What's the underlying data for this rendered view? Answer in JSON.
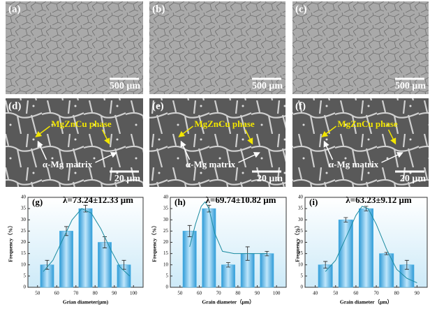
{
  "micrographs": [
    {
      "label": "(a)",
      "scale": "500 μm"
    },
    {
      "label": "(b)",
      "scale": "500 μm"
    },
    {
      "label": "(c)",
      "scale": "500 μm"
    },
    {
      "label": "(d)",
      "phase": "MgZnCu phase",
      "matrix": "α-Mg matrix",
      "scale": "20 μm"
    },
    {
      "label": "(e)",
      "phase": "MgZnCu phase",
      "matrix": "α-Mg matrix",
      "scale": "20 μm"
    },
    {
      "label": "(f)",
      "phase": "MgZnCu phase",
      "matrix": "α-Mg matrix",
      "scale": "20 μm"
    }
  ],
  "chart_data": [
    {
      "type": "bar",
      "label": "(g)",
      "title": "λ=73.24±12.33 μm",
      "x_label": "Grian diameter(μm)",
      "y_label": "Frequency（%）",
      "x": [
        55,
        65,
        75,
        85,
        95
      ],
      "values": [
        10,
        25,
        35,
        20,
        10
      ],
      "errors": [
        2,
        2,
        1.5,
        2.5,
        2
      ],
      "color": "#4fb6e8",
      "fit": {
        "x": [
          53,
          58,
          63,
          68,
          73,
          78,
          83,
          88,
          93,
          98
        ],
        "y": [
          7,
          12,
          21,
          30,
          35,
          33,
          26,
          17,
          9,
          5
        ]
      },
      "xlim": [
        45,
        105
      ],
      "xticks": [
        50,
        60,
        70,
        80,
        90,
        100
      ],
      "ylim": [
        0,
        40
      ],
      "yticks": [
        0,
        5,
        10,
        15,
        20,
        25,
        30,
        35,
        40
      ]
    },
    {
      "type": "bar",
      "label": "(h)",
      "title": "λ=69.74±10.82 μm",
      "x_label": "Grain diameter（μm）",
      "y_label": "Frequency（%）",
      "x": [
        55,
        65,
        75,
        85,
        95
      ],
      "values": [
        25,
        35,
        10,
        15,
        15
      ],
      "errors": [
        2.5,
        1.5,
        1,
        3,
        1
      ],
      "color": "#4fb6e8",
      "fit": {
        "x": [
          55,
          58,
          61,
          63,
          65,
          68,
          72,
          78,
          85,
          95
        ],
        "y": [
          18,
          28,
          36,
          38,
          35,
          24,
          16,
          15,
          15,
          15
        ]
      },
      "xlim": [
        45,
        105
      ],
      "xticks": [
        50,
        60,
        70,
        80,
        90,
        100
      ],
      "ylim": [
        0,
        40
      ],
      "yticks": [
        0,
        5,
        10,
        15,
        20,
        25,
        30,
        35,
        40
      ]
    },
    {
      "type": "bar",
      "label": "(i)",
      "title": "λ=63.23±9.12 μm",
      "x_label": "Grain diameter（μm）",
      "y_label": "Frequency（%）",
      "x": [
        45,
        55,
        65,
        75,
        85
      ],
      "values": [
        10,
        30,
        35,
        15,
        10
      ],
      "errors": [
        1.5,
        1,
        1,
        0.5,
        2
      ],
      "color": "#4fb6e8",
      "fit": {
        "x": [
          45,
          50,
          55,
          60,
          63,
          66,
          70,
          75,
          80,
          85,
          90
        ],
        "y": [
          7,
          12,
          22,
          32,
          36,
          35,
          28,
          17,
          8,
          4,
          2
        ]
      },
      "xlim": [
        35,
        95
      ],
      "xticks": [
        40,
        50,
        60,
        70,
        80,
        90
      ],
      "ylim": [
        0,
        40
      ],
      "yticks": [
        0,
        5,
        10,
        15,
        20,
        25,
        30,
        35,
        40
      ]
    }
  ]
}
